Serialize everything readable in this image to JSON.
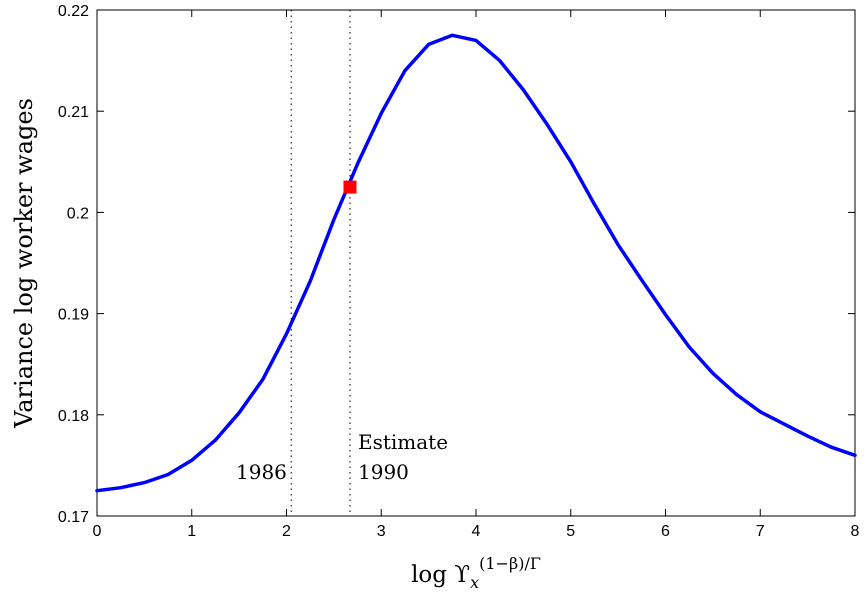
{
  "chart_data": {
    "type": "line",
    "xlabel_base": "log ϒ",
    "xlabel_sub": "x",
    "xlabel_sup": "(1−β)/Γ",
    "ylabel": "Variance log worker wages",
    "xlim": [
      0,
      8
    ],
    "ylim": [
      0.17,
      0.22
    ],
    "x_ticks": [
      0,
      1,
      2,
      3,
      4,
      5,
      6,
      7,
      8
    ],
    "y_ticks": [
      0.17,
      0.18,
      0.19,
      0.2,
      0.21,
      0.22
    ],
    "y_tick_labels": [
      "0.17",
      "0.18",
      "0.19",
      "0.2",
      "0.21",
      "0.22"
    ],
    "grid": false,
    "series": [
      {
        "color": "#0000ff",
        "x": [
          0,
          0.25,
          0.5,
          0.75,
          1,
          1.25,
          1.5,
          1.75,
          2,
          2.25,
          2.5,
          2.75,
          3,
          3.25,
          3.5,
          3.75,
          4,
          4.25,
          4.5,
          4.75,
          5,
          5.25,
          5.5,
          5.75,
          6,
          6.25,
          6.5,
          6.75,
          7,
          7.25,
          7.5,
          7.75,
          8
        ],
        "y": [
          0.1725,
          0.1728,
          0.1733,
          0.1741,
          0.1755,
          0.1775,
          0.1802,
          0.1835,
          0.188,
          0.1932,
          0.1993,
          0.2048,
          0.2098,
          0.214,
          0.2166,
          0.2175,
          0.217,
          0.215,
          0.2121,
          0.2087,
          0.205,
          0.2008,
          0.1968,
          0.1933,
          0.1899,
          0.1867,
          0.1841,
          0.182,
          0.1803,
          0.1791,
          0.1779,
          0.1768,
          0.176
        ]
      }
    ],
    "marker": {
      "x": 2.67,
      "y": 0.2025,
      "color": "#ff0000",
      "shape": "square"
    },
    "vlines": [
      {
        "x": 2.05,
        "style": "dotted",
        "label": "1986"
      },
      {
        "x": 2.67,
        "style": "dotted",
        "label_line1": "Estimate",
        "label_line2": "1990"
      }
    ]
  }
}
